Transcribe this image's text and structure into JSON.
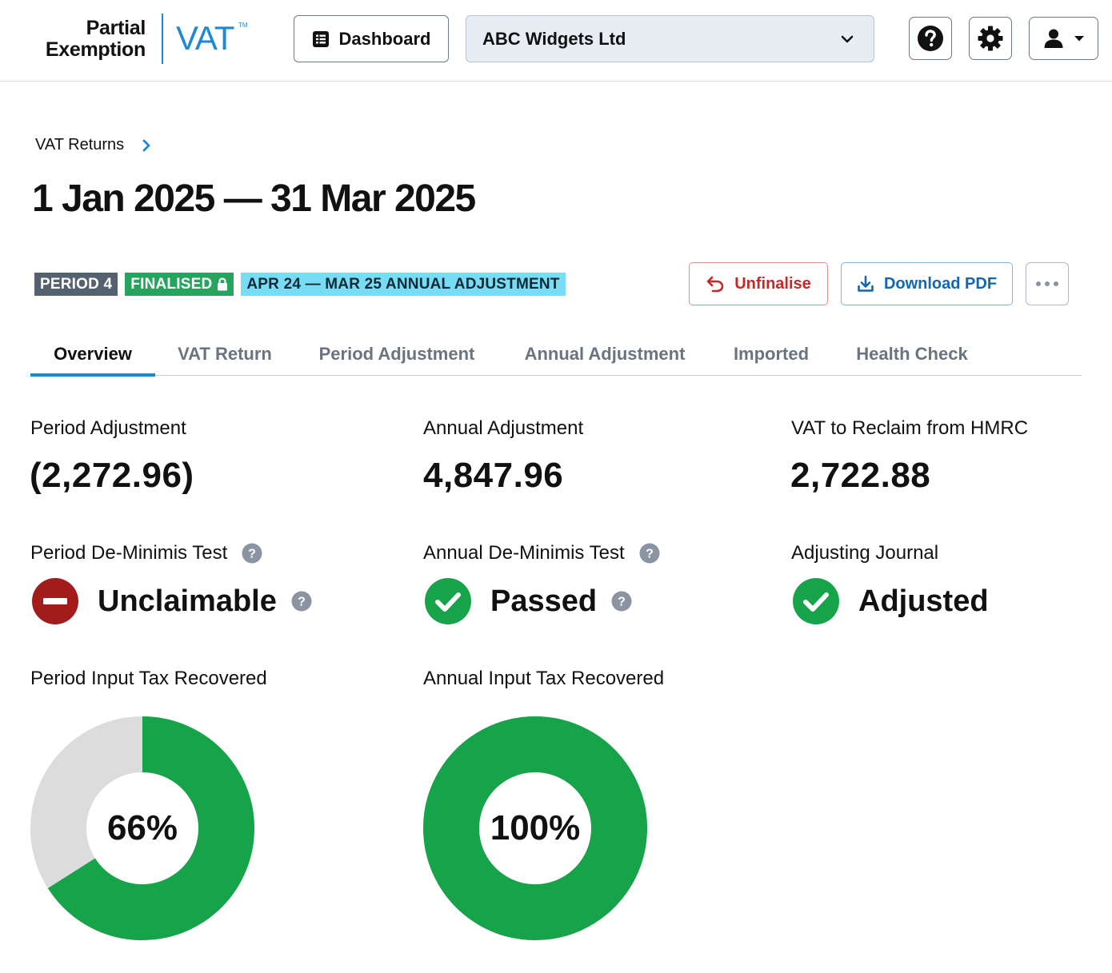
{
  "app": {
    "logo_line1": "Partial",
    "logo_line2": "Exemption",
    "logo_vat": "VAT",
    "logo_tm": "TM"
  },
  "header": {
    "dashboard_label": "Dashboard",
    "organisation": "ABC Widgets Ltd"
  },
  "breadcrumb": {
    "items": [
      "VAT Returns"
    ]
  },
  "page": {
    "title": "1 Jan 2025 — 31 Mar 2025"
  },
  "badges": {
    "period": "PERIOD 4",
    "status": "FINALISED",
    "annual": "APR 24 — MAR 25 ANNUAL ADJUSTMENT"
  },
  "actions": {
    "unfinalise": "Unfinalise",
    "download_pdf": "Download PDF"
  },
  "tabs": [
    {
      "label": "Overview",
      "active": true
    },
    {
      "label": "VAT Return",
      "active": false
    },
    {
      "label": "Period Adjustment",
      "active": false
    },
    {
      "label": "Annual Adjustment",
      "active": false
    },
    {
      "label": "Imported",
      "active": false
    },
    {
      "label": "Health Check",
      "active": false
    }
  ],
  "stats": {
    "period_adjustment": {
      "label": "Period Adjustment",
      "value": "(2,272.96)"
    },
    "annual_adjustment": {
      "label": "Annual Adjustment",
      "value": "4,847.96"
    },
    "vat_reclaim": {
      "label": "VAT to Reclaim from HMRC",
      "value": "2,722.88"
    }
  },
  "tests": {
    "period_deminimis": {
      "label": "Period De-Minimis Test",
      "status": "Unclaimable"
    },
    "annual_deminimis": {
      "label": "Annual De-Minimis Test",
      "status": "Passed"
    },
    "adjusting_journal": {
      "label": "Adjusting Journal",
      "status": "Adjusted"
    }
  },
  "recovery": {
    "period": {
      "label": "Period Input Tax Recovered",
      "percent": 66,
      "display": "66%"
    },
    "annual": {
      "label": "Annual Input Tax Recovered",
      "percent": 100,
      "display": "100%"
    }
  },
  "colors": {
    "accent": "#1e88d4",
    "green": "#17a34a",
    "red": "#a31c1c",
    "donut_track": "#dcdcdc",
    "help_grey": "#8a94a3"
  }
}
